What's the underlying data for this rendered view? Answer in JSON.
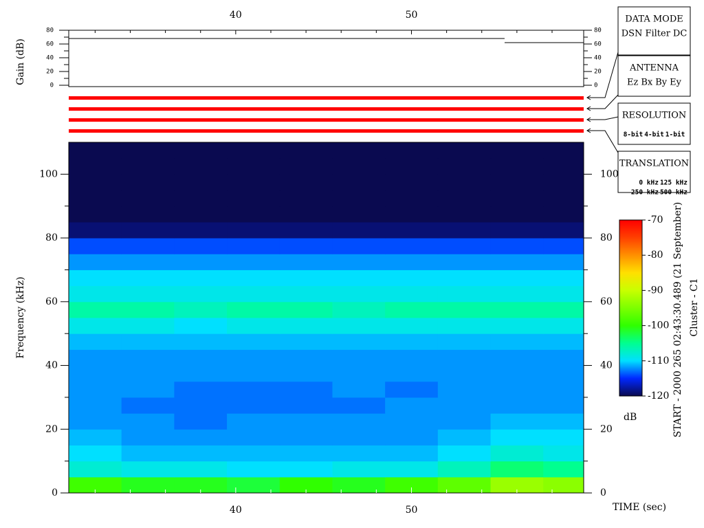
{
  "chart_data": {
    "type": "heatmap",
    "x_label": "TIME (sec)",
    "y_label": "Frequency (kHz)",
    "xlim": [
      30.5,
      59.8
    ],
    "ylim": [
      0,
      110
    ],
    "xticks": [
      40,
      50
    ],
    "x_minor_ticks": [
      32,
      34,
      36,
      38,
      42,
      44,
      46,
      48,
      52,
      54,
      56,
      58
    ],
    "yticks": [
      0,
      20,
      40,
      60,
      80,
      100
    ],
    "y_minor_ticks": [
      10,
      30,
      50,
      70,
      90
    ],
    "x_edges": [
      30.5,
      33.5,
      36.5,
      39.5,
      42.5,
      45.5,
      48.5,
      51.5,
      54.5,
      57.5,
      59.8
    ],
    "y_edges": [
      0,
      5,
      10,
      15,
      20,
      25,
      30,
      35,
      40,
      45,
      50,
      55,
      60,
      65,
      70,
      75,
      80,
      85,
      90,
      95,
      100,
      105,
      110
    ],
    "z": [
      [
        -99,
        -101,
        -101,
        -102,
        -100,
        -101,
        -99,
        -97,
        -93,
        -94
      ],
      [
        -108,
        -109,
        -109,
        -110,
        -110,
        -109,
        -109,
        -107,
        -104,
        -105
      ],
      [
        -110,
        -111,
        -111,
        -111,
        -111,
        -111,
        -111,
        -110,
        -108,
        -109
      ],
      [
        -111,
        -112,
        -112,
        -112,
        -112,
        -112,
        -112,
        -111,
        -110,
        -110
      ],
      [
        -112,
        -112,
        -113,
        -112,
        -112,
        -112,
        -112,
        -112,
        -111,
        -111
      ],
      [
        -112,
        -113,
        -113,
        -113,
        -113,
        -113,
        -112,
        -112,
        -112,
        -112
      ],
      [
        -112,
        -112,
        -113,
        -113,
        -113,
        -112,
        -113,
        -112,
        -112,
        -112
      ],
      [
        -112,
        -112,
        -112,
        -112,
        -112,
        -112,
        -112,
        -112,
        -112,
        -112
      ],
      [
        -112,
        -112,
        -112,
        -112,
        -112,
        -112,
        -112,
        -112,
        -112,
        -112
      ],
      [
        -111,
        -111,
        -111,
        -111,
        -111,
        -111,
        -111,
        -111,
        -111,
        -111
      ],
      [
        -109,
        -109,
        -110,
        -109,
        -109,
        -109,
        -109,
        -109,
        -109,
        -109
      ],
      [
        -106,
        -106,
        -107,
        -106,
        -106,
        -107,
        -106,
        -106,
        -106,
        -106
      ],
      [
        -109,
        -109,
        -109,
        -109,
        -109,
        -109,
        -109,
        -109,
        -109,
        -109
      ],
      [
        -110,
        -110,
        -110,
        -110,
        -110,
        -110,
        -110,
        -110,
        -110,
        -110
      ],
      [
        -112,
        -112,
        -112,
        -112,
        -112,
        -112,
        -112,
        -112,
        -112,
        -112
      ],
      [
        -114,
        -114,
        -114,
        -114,
        -114,
        -114,
        -114,
        -114,
        -114,
        -114
      ],
      [
        -119,
        -119,
        -119,
        -119,
        -119,
        -119,
        -119,
        -119,
        -119,
        -119
      ],
      [
        -120,
        -120,
        -120,
        -120,
        -120,
        -120,
        -120,
        -120,
        -120,
        -120
      ],
      [
        -120,
        -120,
        -120,
        -120,
        -120,
        -120,
        -120,
        -120,
        -120,
        -120
      ],
      [
        -120,
        -120,
        -120,
        -120,
        -120,
        -120,
        -120,
        -120,
        -120,
        -120
      ],
      [
        -120,
        -120,
        -120,
        -120,
        -120,
        -120,
        -120,
        -120,
        -120,
        -120
      ],
      [
        -120,
        -120,
        -120,
        -120,
        -120,
        -120,
        -120,
        -120,
        -120,
        -120
      ]
    ],
    "zlim": [
      -120,
      -70
    ],
    "zticks": [
      -70,
      -80,
      -90,
      -100,
      -110,
      -120
    ],
    "colorbar_label": "dB",
    "colorscale": [
      {
        "value": -120,
        "color": "#0a0a50"
      },
      {
        "value": -115,
        "color": "#0028ff"
      },
      {
        "value": -110,
        "color": "#00e0ff"
      },
      {
        "value": -105,
        "color": "#00ff90"
      },
      {
        "value": -100,
        "color": "#30ff00"
      },
      {
        "value": -90,
        "color": "#c8ff00"
      },
      {
        "value": -85,
        "color": "#ffe000"
      },
      {
        "value": -80,
        "color": "#ff9000"
      },
      {
        "value": -75,
        "color": "#ff4000"
      },
      {
        "value": -70,
        "color": "#ff0000"
      }
    ],
    "gain_panel": {
      "y_label": "Gain (dB)",
      "ylim": [
        0,
        80
      ],
      "yticks": [
        0,
        20,
        40,
        60,
        80
      ],
      "y_minor_ticks": [
        10,
        30,
        50,
        70
      ],
      "color": "#000000",
      "x": [
        30.5,
        55.3,
        null,
        55.3,
        59.8
      ],
      "values": [
        68,
        68,
        null,
        62,
        62
      ]
    },
    "side_text": [
      "START - 2000 265 02:43:30.489 (21 September)",
      "Cluster - C1"
    ]
  },
  "mode_boxes": [
    {
      "title": "DATA MODE",
      "items": [
        {
          "text": "DSN",
          "color": "#ff0000"
        },
        {
          "text": "Filter",
          "color": "#00dd00"
        },
        {
          "text": "DC",
          "color": "#0000ff"
        }
      ]
    },
    {
      "title": "ANTENNA",
      "items": [
        {
          "text": "Ez",
          "color": "#ff0000"
        },
        {
          "text": "Bx",
          "color": "#00dd00"
        },
        {
          "text": "By",
          "color": "#0000ff"
        },
        {
          "text": "Ey",
          "color": "#000000"
        }
      ]
    },
    {
      "title": "RESOLUTION",
      "items": [
        {
          "text": "8-bit",
          "color": "#ff0000"
        },
        {
          "text": "4-bit",
          "color": "#00dd00"
        },
        {
          "text": "1-bit",
          "color": "#0000ff"
        }
      ]
    },
    {
      "title": "TRANSLATION",
      "items": [
        {
          "text": "0 kHz",
          "color": "#ff0000"
        },
        {
          "text": "125 kHz",
          "color": "#00dd00"
        },
        {
          "text": "250 kHz",
          "color": "#0000ff"
        },
        {
          "text": "500 kHz",
          "color": "#000000"
        }
      ]
    }
  ]
}
